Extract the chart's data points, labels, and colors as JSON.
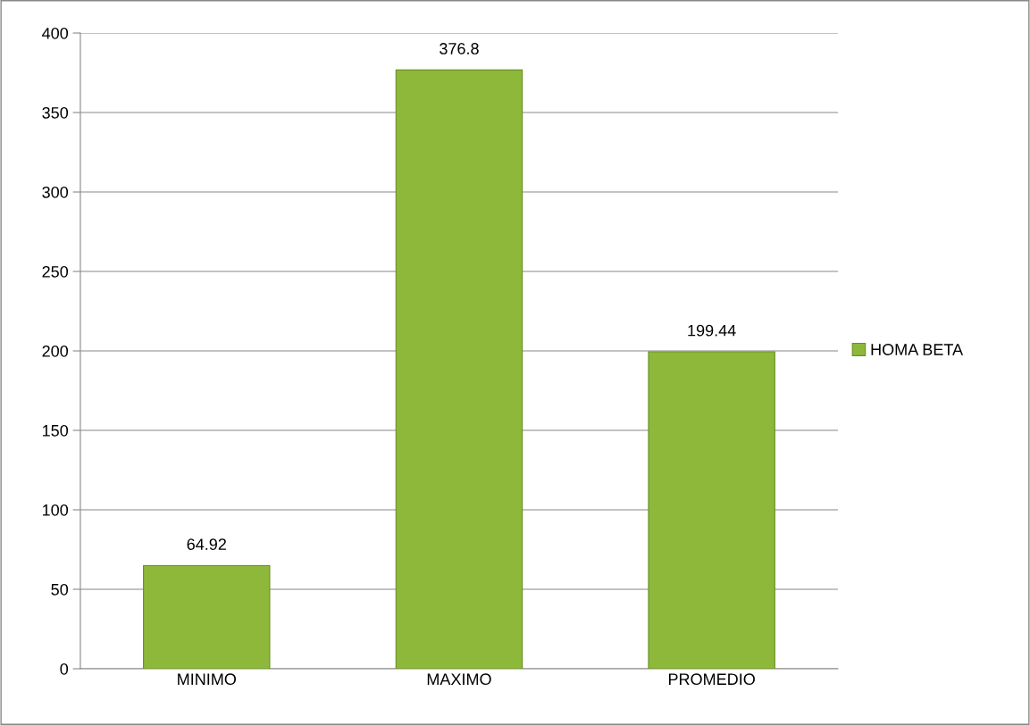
{
  "chart_data": {
    "type": "bar",
    "categories": [
      "MINIMO",
      "MAXIMO",
      "PROMEDIO"
    ],
    "series": [
      {
        "name": "HOMA BETA",
        "color": "#8db83a",
        "values": [
          64.92,
          376.8,
          199.44
        ]
      }
    ],
    "data_labels": true,
    "ylim": [
      0,
      400
    ],
    "yticks": [
      0,
      50,
      100,
      150,
      200,
      250,
      300,
      350,
      400
    ],
    "grid": "y",
    "legend": "right"
  }
}
